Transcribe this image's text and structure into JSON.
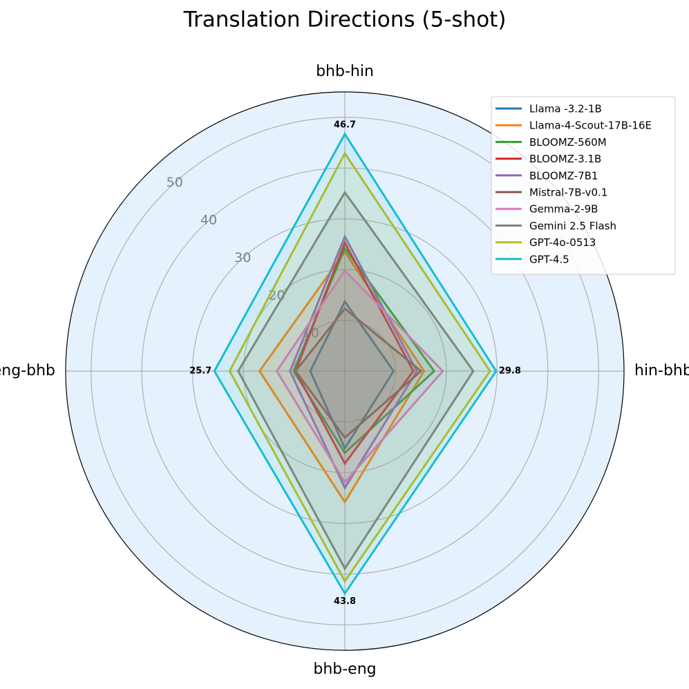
{
  "chart_data": {
    "type": "radar",
    "title": "Translation Directions (5-shot)",
    "categories": [
      "bhb-hin",
      "hin-bhb",
      "bhb-eng",
      "eng-bhb"
    ],
    "rlim": [
      0,
      55
    ],
    "rticks": [
      10,
      20,
      30,
      40,
      50
    ],
    "grid": true,
    "legend": "upper right",
    "series": [
      {
        "name": "Llama -3.2-1B",
        "color": "#1f77b4",
        "values": [
          13.7,
          9.6,
          15.2,
          6.8
        ]
      },
      {
        "name": "Llama-4-Scout-17B-16E",
        "color": "#ff7f0e",
        "values": [
          23.5,
          15.6,
          25.8,
          16.8
        ]
      },
      {
        "name": "BLOOMZ-560M",
        "color": "#2ca02c",
        "values": [
          24.2,
          17.6,
          16.1,
          10.1
        ]
      },
      {
        "name": "BLOOMZ-3.1B",
        "color": "#d62728",
        "values": [
          25.3,
          13.5,
          18.2,
          9.7
        ]
      },
      {
        "name": "BLOOMZ-7B1",
        "color": "#9467bd",
        "values": [
          26.5,
          14.2,
          23.0,
          10.8
        ]
      },
      {
        "name": "Mistral-7B-v0.1",
        "color": "#8c564b",
        "values": [
          12.3,
          15.0,
          13.1,
          9.7
        ]
      },
      {
        "name": "Gemma-2-9B",
        "color": "#e377c2",
        "values": [
          19.8,
          19.3,
          21.9,
          13.4
        ]
      },
      {
        "name": "Gemini 2.5 Flash",
        "color": "#7f7f7f",
        "values": [
          35.2,
          25.3,
          38.9,
          21.0
        ]
      },
      {
        "name": "GPT-4o-0513",
        "color": "#bcbd22",
        "values": [
          42.9,
          28.6,
          41.4,
          22.7
        ]
      },
      {
        "name": "GPT-4.5",
        "color": "#17becf",
        "values": [
          46.7,
          29.8,
          43.8,
          25.7
        ],
        "value_labels": [
          "46.7",
          "29.8",
          "43.8",
          "25.7"
        ]
      }
    ]
  }
}
